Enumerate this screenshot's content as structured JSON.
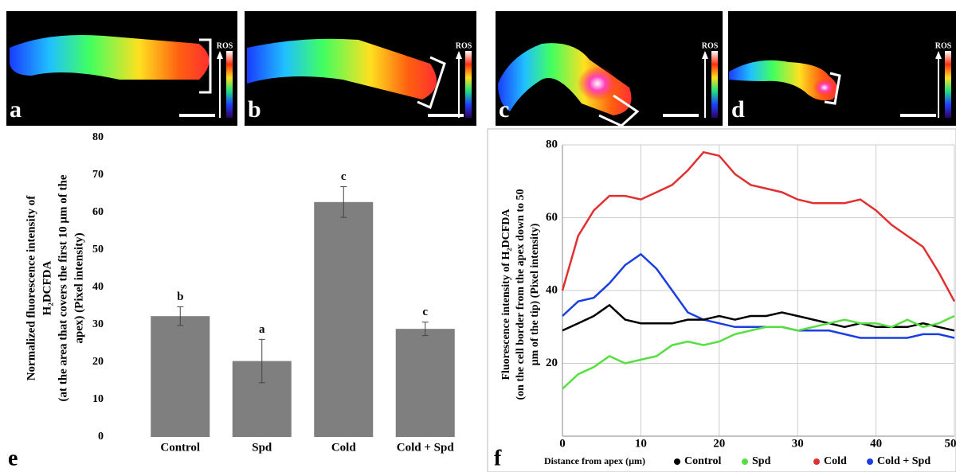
{
  "images": [
    {
      "label": "a",
      "colorbar_label": "ROS"
    },
    {
      "label": "b",
      "colorbar_label": "ROS"
    },
    {
      "label": "c",
      "colorbar_label": "ROS"
    },
    {
      "label": "d",
      "colorbar_label": "ROS"
    }
  ],
  "chart_data": [
    {
      "type": "bar",
      "panel_label": "e",
      "ylabel": [
        "Normalized fluorescence intensity of",
        "H₂DCFDA",
        "(at the area that covers the first 10 µm of the",
        "apex) (Pixel intensity)"
      ],
      "categories": [
        "Control",
        "Spd",
        "Cold",
        "Cold + Spd"
      ],
      "values": [
        32.3,
        20.3,
        62.8,
        28.9
      ],
      "errors": [
        2.5,
        5.8,
        4.1,
        1.8
      ],
      "annotations": [
        "b",
        "a",
        "c",
        "c"
      ],
      "color": "#7f7f7f",
      "ylim": [
        0,
        80
      ],
      "yticks": [
        0,
        10,
        20,
        30,
        40,
        50,
        60,
        70,
        80
      ],
      "grid": false
    },
    {
      "type": "line",
      "panel_label": "f",
      "xlabel": "Distance from apex (µm)",
      "ylabel": [
        "Fluorescence intensity of  H₂DCFDA",
        "(on the cell border from the apex down to 50",
        "µm of the tip) (Pixel intensity)"
      ],
      "x": [
        0,
        2,
        4,
        6,
        8,
        10,
        12,
        14,
        16,
        18,
        20,
        22,
        24,
        26,
        28,
        30,
        32,
        34,
        36,
        38,
        40,
        42,
        44,
        46,
        48,
        50
      ],
      "series": [
        {
          "name": "Control",
          "color": "#000000",
          "values": [
            29,
            31,
            33,
            36,
            32,
            31,
            31,
            31,
            32,
            32,
            33,
            32,
            33,
            33,
            34,
            33,
            32,
            31,
            30,
            31,
            30,
            30,
            30,
            31,
            30,
            29
          ]
        },
        {
          "name": "Spd",
          "color": "#55e040",
          "values": [
            13,
            17,
            19,
            22,
            20,
            21,
            22,
            25,
            26,
            25,
            26,
            28,
            29,
            30,
            30,
            29,
            30,
            31,
            32,
            31,
            31,
            30,
            32,
            30,
            31,
            33
          ]
        },
        {
          "name": "Cold",
          "color": "#e03030",
          "values": [
            40,
            55,
            62,
            66,
            66,
            65,
            67,
            69,
            73,
            78,
            77,
            72,
            69,
            68,
            67,
            65,
            64,
            64,
            64,
            65,
            62,
            58,
            55,
            52,
            45,
            37
          ]
        },
        {
          "name": "Cold + Spd",
          "color": "#1a3fe0",
          "values": [
            33,
            37,
            38,
            42,
            47,
            50,
            46,
            40,
            34,
            32,
            31,
            30,
            30,
            30,
            30,
            29,
            29,
            29,
            28,
            27,
            27,
            27,
            27,
            28,
            28,
            27
          ]
        }
      ],
      "xlim": [
        0,
        50
      ],
      "xticks": [
        0,
        10,
        20,
        30,
        40,
        50
      ],
      "ylim": [
        0,
        80
      ],
      "yticks": [
        20,
        40,
        60,
        80
      ],
      "grid": true,
      "legend": "bottom"
    }
  ]
}
